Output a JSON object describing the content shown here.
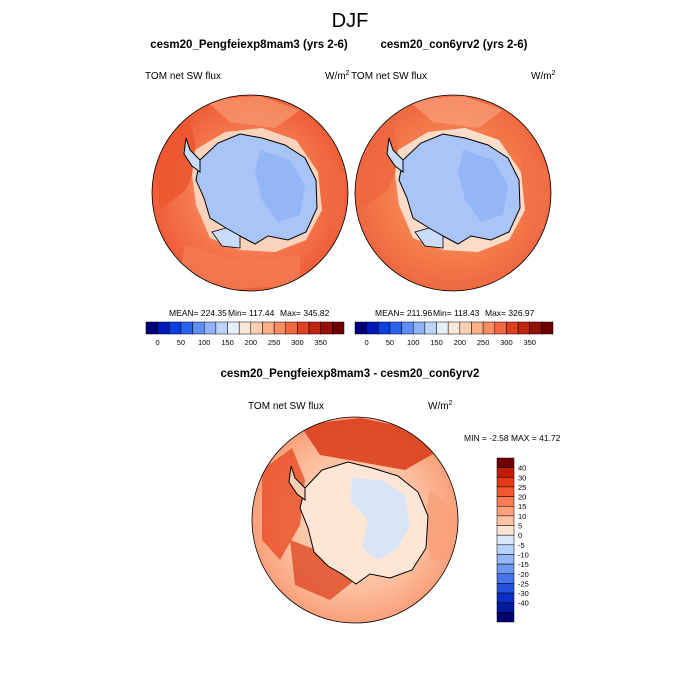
{
  "chart_data": {
    "type": "heatmap",
    "title": "DJF",
    "units_base": "W/m",
    "units_exp": "2",
    "panels": [
      {
        "case": "cesm20_Pengfeiexp8mam3 (yrs 2-6)",
        "variable": "TOM net SW flux",
        "mean_label": "MEAN= 224.35",
        "min_label": "Min= 117.44",
        "max_label": "Max= 345.82",
        "mean": 224.35,
        "min": 117.44,
        "max": 345.82
      },
      {
        "case": "cesm20_con6yrv2 (yrs 2-6)",
        "variable": "TOM net SW flux",
        "mean_label": "MEAN= 211.96",
        "min_label": "Min= 118.43",
        "max_label": "Max= 326.97",
        "mean": 211.96,
        "min": 118.43,
        "max": 326.97
      }
    ],
    "difference": {
      "title": "cesm20_Pengfeiexp8mam3 - cesm20_con6yrv2",
      "variable": "TOM net SW flux",
      "minmax_label": "MIN =  -2.58 MAX =  41.72",
      "min": -2.58,
      "max": 41.72
    },
    "abs_colorbar": {
      "colors": [
        "#00007a",
        "#0018b8",
        "#0b3fe0",
        "#2a62ef",
        "#5d8cf4",
        "#8fb3f8",
        "#bed5fb",
        "#e6effc",
        "#fde9dc",
        "#fdd0b4",
        "#fcb08a",
        "#f98b63",
        "#f2653e",
        "#e04020",
        "#c02510",
        "#971005",
        "#700000"
      ],
      "ticks": [
        "0",
        "50",
        "100",
        "150",
        "200",
        "250",
        "300",
        "350"
      ]
    },
    "diff_colorbar": {
      "colors": [
        "#700000",
        "#c21b05",
        "#e63a17",
        "#f5582f",
        "#fb7b52",
        "#fda07b",
        "#fec3a6",
        "#fde3d2",
        "#d8e7fb",
        "#b7d2fa",
        "#93b7f7",
        "#6d98f2",
        "#4774ec",
        "#2452de",
        "#0c2ec8",
        "#001a9c",
        "#000070"
      ],
      "labels": [
        "40",
        "30",
        "25",
        "20",
        "15",
        "10",
        "5",
        "0",
        "-5",
        "-10",
        "-15",
        "-20",
        "-25",
        "-30",
        "-40"
      ]
    }
  },
  "colors": {
    "ocean": "#f47149",
    "ocean_strong": "#ec5630",
    "coast_light": "#fbb08a",
    "ice": "#a9c4f6",
    "ice_light": "#c9dcfb",
    "diff_base": "#fcbd9c",
    "diff_strong": "#d93a17",
    "diff_land": "#fde6d5",
    "diff_blue": "#d5e4fb"
  }
}
